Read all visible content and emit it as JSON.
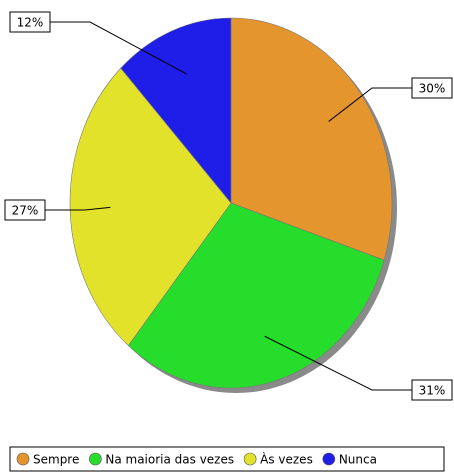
{
  "chart_data": {
    "type": "pie",
    "categories": [
      "Sempre",
      "Na maioria das vezes",
      "Às vezes",
      "Nunca"
    ],
    "values": [
      30,
      31,
      27,
      12
    ],
    "value_labels": [
      "30%",
      "31%",
      "27%",
      "12%"
    ],
    "colors": [
      "#e5952e",
      "#25dd2a",
      "#e2e22a",
      "#1e1ee8"
    ],
    "legend": "bottom"
  }
}
